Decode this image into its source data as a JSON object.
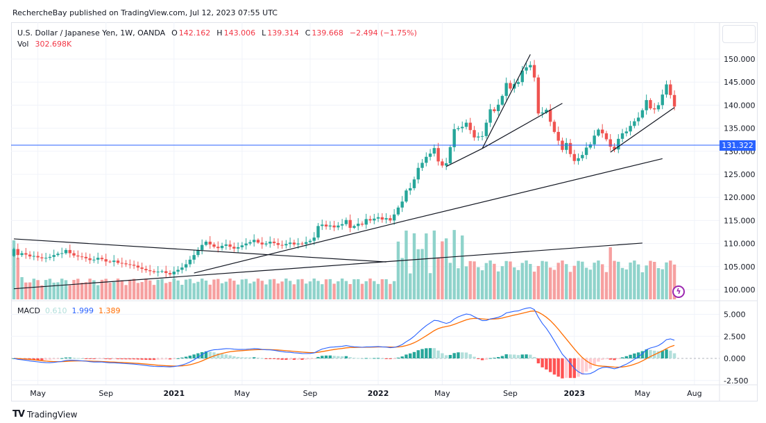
{
  "header": {
    "publish_line": "RechercheBay published on TradingView.com, Jul 12, 2023 07:55 UTC"
  },
  "legend": {
    "symbol": "U.S. Dollar / Japanese Yen, 1W, OANDA",
    "open_label": "O",
    "open": "142.162",
    "high_label": "H",
    "high": "143.006",
    "low_label": "L",
    "low": "139.314",
    "close_label": "C",
    "close": "139.668",
    "change": "−2.494 (−1.75%)",
    "vol_label": "Vol",
    "vol": "302.698K"
  },
  "macd_legend": {
    "label": "MACD",
    "histogram": "0.610",
    "macd": "1.999",
    "signal": "1.389"
  },
  "price_tag": "131.322",
  "footer": {
    "brand": "TradingView",
    "mark": "TV"
  },
  "colors": {
    "up": "#26a69a",
    "down": "#ef5350",
    "vol_up": "#8fd3cb",
    "vol_down": "#f6a0a0",
    "macd": "#2962ff",
    "signal": "#ff6d00",
    "hist_up_strong": "#26a69a",
    "hist_up_weak": "#b2dfdb",
    "hist_down_strong": "#ff5252",
    "hist_down_weak": "#ffcdd2",
    "horizontal_line": "#2962ff",
    "trendline": "#131722"
  },
  "chart_data": {
    "type": "candlestick",
    "title": "U.S. Dollar / Japanese Yen, 1W, OANDA",
    "price_axis": {
      "ticks": [
        "150.000",
        "145.000",
        "140.000",
        "135.000",
        "130.000",
        "125.000",
        "120.000",
        "115.000",
        "110.000",
        "105.000",
        "100.000"
      ],
      "range": [
        98,
        152
      ]
    },
    "macd_axis": {
      "ticks": [
        "5.000",
        "2.500",
        "0.000",
        "-2.500"
      ],
      "range": [
        -2.6,
        6.0
      ]
    },
    "time_axis": [
      {
        "label": "May",
        "bold": false,
        "week": 6
      },
      {
        "label": "Sep",
        "bold": false,
        "week": 23
      },
      {
        "label": "2021",
        "bold": true,
        "week": 40
      },
      {
        "label": "May",
        "bold": false,
        "week": 57
      },
      {
        "label": "Sep",
        "bold": false,
        "week": 74
      },
      {
        "label": "2022",
        "bold": true,
        "week": 91
      },
      {
        "label": "May",
        "bold": false,
        "week": 107
      },
      {
        "label": "Sep",
        "bold": false,
        "week": 124
      },
      {
        "label": "2023",
        "bold": true,
        "week": 140
      },
      {
        "label": "May",
        "bold": false,
        "week": 157
      },
      {
        "label": "Aug",
        "bold": false,
        "week": 170
      }
    ],
    "horizontal_line": 131.322,
    "trendlines": [
      {
        "from": {
          "week": 0,
          "price": 111.0
        },
        "to": {
          "week": 93,
          "price": 106.0
        }
      },
      {
        "from": {
          "week": 0,
          "price": 100.2
        },
        "to": {
          "week": 157,
          "price": 110.1
        }
      },
      {
        "from": {
          "week": 45,
          "price": 103.6
        },
        "to": {
          "week": 98,
          "price": 115.0
        }
      },
      {
        "from": {
          "week": 98,
          "price": 115.0
        },
        "to": {
          "week": 162,
          "price": 128.4
        }
      },
      {
        "from": {
          "week": 108,
          "price": 126.7
        },
        "to": {
          "week": 117,
          "price": 130.6
        }
      },
      {
        "from": {
          "week": 117,
          "price": 130.6
        },
        "to": {
          "week": 137,
          "price": 140.4
        }
      },
      {
        "from": {
          "week": 117,
          "price": 130.6
        },
        "to": {
          "week": 129,
          "price": 151.0
        }
      },
      {
        "from": {
          "week": 149,
          "price": 129.8
        },
        "to": {
          "week": 165,
          "price": 139.5
        }
      }
    ],
    "closes": [
      108.8,
      107.5,
      107.9,
      107.6,
      107.2,
      107.3,
      107.0,
      106.8,
      106.9,
      107.1,
      107.5,
      107.8,
      107.9,
      108.6,
      107.9,
      107.4,
      107.2,
      107.1,
      106.8,
      106.4,
      106.5,
      106.9,
      106.6,
      106.1,
      106.0,
      106.3,
      105.8,
      105.7,
      105.5,
      105.4,
      105.2,
      104.8,
      104.5,
      104.2,
      104.0,
      103.8,
      103.9,
      104.0,
      103.6,
      103.3,
      103.9,
      104.3,
      104.8,
      105.5,
      106.5,
      107.5,
      108.6,
      109.7,
      110.4,
      109.8,
      109.3,
      109.0,
      109.5,
      109.8,
      109.3,
      108.9,
      109.2,
      109.6,
      110.0,
      110.3,
      110.8,
      110.2,
      109.8,
      110.0,
      110.4,
      110.1,
      109.7,
      109.6,
      109.9,
      110.2,
      109.8,
      110.0,
      109.9,
      110.3,
      110.6,
      111.3,
      113.8,
      114.1,
      113.7,
      113.9,
      113.5,
      113.9,
      114.2,
      115.1,
      113.4,
      113.8,
      114.3,
      114.1,
      115.3,
      115.0,
      115.4,
      115.7,
      115.2,
      115.5,
      115.0,
      116.3,
      117.8,
      119.1,
      121.5,
      122.0,
      123.9,
      126.4,
      127.5,
      128.8,
      129.5,
      130.7,
      127.8,
      126.9,
      127.4,
      130.9,
      134.8,
      135.0,
      135.3,
      136.2,
      134.6,
      133.0,
      133.2,
      133.3,
      136.2,
      139.1,
      138.7,
      140.1,
      142.0,
      144.8,
      143.6,
      144.6,
      145.0,
      147.5,
      148.2,
      148.7,
      146.0,
      138.2,
      138.4,
      139.0,
      136.4,
      134.2,
      132.3,
      130.3,
      131.8,
      129.4,
      127.9,
      128.5,
      129.2,
      130.8,
      131.5,
      133.4,
      134.7,
      133.9,
      132.6,
      131.0,
      130.4,
      132.7,
      133.9,
      134.3,
      135.5,
      136.5,
      137.3,
      138.9,
      141.1,
      139.3,
      139.1,
      140.0,
      142.3,
      144.5,
      142.2,
      139.7
    ],
    "volume_note": "volume bars in pane bottom, colored by candle direction",
    "macd_series_note": "MACD (blue), signal (orange), histogram (teal/red shades)"
  }
}
